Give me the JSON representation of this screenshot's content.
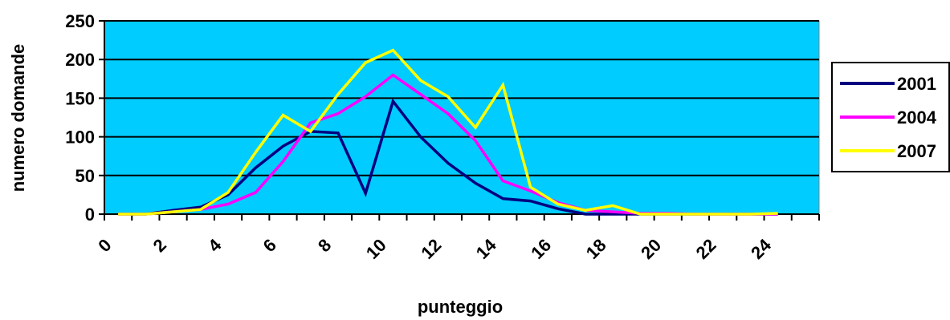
{
  "chart_data": {
    "type": "line",
    "xlabel": "punteggio",
    "ylabel": "numero domande",
    "ylim": [
      0,
      250
    ],
    "yticks": [
      "0",
      "50",
      "100",
      "150",
      "200",
      "250"
    ],
    "xlim": [
      0,
      26
    ],
    "xticks": [
      "0",
      "2",
      "4",
      "6",
      "8",
      "10",
      "12",
      "14",
      "16",
      "18",
      "20",
      "22",
      "24"
    ],
    "grid": "horizontal",
    "legend_position": "right",
    "plot_background": "#00CCFF",
    "x": [
      0.5,
      1.5,
      2.5,
      3.5,
      4.5,
      5.5,
      6.5,
      7.5,
      8.5,
      9.5,
      10.5,
      11.5,
      12.5,
      13.5,
      14.5,
      15.5,
      16.5,
      17.5,
      18.5,
      19.5,
      20.5,
      21.5,
      22.5,
      23.5,
      24.5
    ],
    "series": [
      {
        "name": "2001",
        "color": "#000080",
        "values": [
          0,
          0,
          5,
          9,
          25,
          60,
          88,
          107,
          105,
          27,
          146,
          100,
          66,
          40,
          20,
          17,
          7,
          0,
          0,
          0,
          0,
          0,
          0,
          0,
          0
        ]
      },
      {
        "name": "2004",
        "color": "#FF00FF",
        "values": [
          0,
          0,
          3,
          6,
          13,
          28,
          68,
          118,
          130,
          152,
          180,
          155,
          130,
          95,
          43,
          30,
          15,
          5,
          3,
          1,
          1,
          0,
          0,
          0,
          0
        ]
      },
      {
        "name": "2007",
        "color": "#FFFF00",
        "values": [
          0,
          0,
          3,
          6,
          28,
          80,
          128,
          107,
          155,
          196,
          212,
          173,
          152,
          112,
          167,
          35,
          13,
          5,
          11,
          0,
          0,
          0,
          0,
          0,
          1
        ]
      }
    ]
  }
}
